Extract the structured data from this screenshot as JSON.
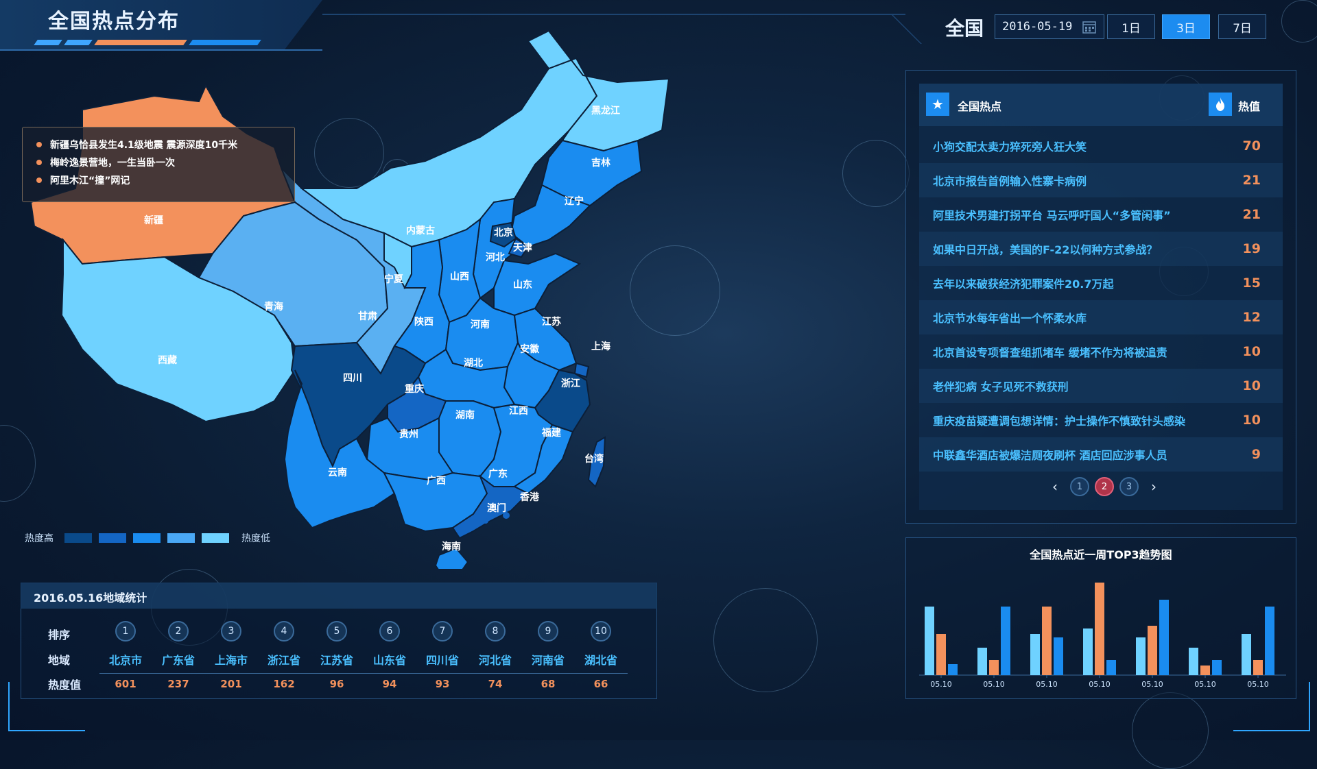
{
  "header": {
    "title": "全国热点分布",
    "region": "全国",
    "date": "2016-05-19",
    "ranges": [
      {
        "label": "1日",
        "active": false
      },
      {
        "label": "3日",
        "active": true
      },
      {
        "label": "7日",
        "active": false
      }
    ]
  },
  "news": [
    "新疆乌恰县发生4.1级地震 震源深度10千米",
    "梅岭逸景营地，一生当卧一次",
    "阿里木江“撞”网记"
  ],
  "map": {
    "provinces": {
      "xinjiang": "新疆",
      "xizang": "西藏",
      "qinghai": "青海",
      "gansu": "甘肃",
      "neimenggu": "内蒙古",
      "heilongjiang": "黑龙江",
      "jilin": "吉林",
      "liaoning": "辽宁",
      "beijing": "北京",
      "tianjin": "天津",
      "hebei": "河北",
      "shanxi": "山西",
      "shandong": "山东",
      "ningxia": "宁夏",
      "shaanxi": "陕西",
      "henan": "河南",
      "jiangsu": "江苏",
      "anhui": "安徽",
      "shanghai": "上海",
      "zhejiang": "浙江",
      "hubei": "湖北",
      "sichuan": "四川",
      "chongqing": "重庆",
      "hunan": "湖南",
      "jiangxi": "江西",
      "guizhou": "贵州",
      "fujian": "福建",
      "yunnan": "云南",
      "guangxi": "广西",
      "guangdong": "广东",
      "taiwan": "台湾",
      "xianggang": "香港",
      "aomen": "澳门",
      "hainan": "海南"
    },
    "colors": {
      "xinjiang": "#f3915c",
      "lightest": "#6fd2ff",
      "light": "#5ab0f2",
      "mid": "#2e96ec",
      "blue": "#1a7fe0",
      "dark": "#0a4a8a"
    }
  },
  "legend": {
    "high_label": "热度高",
    "low_label": "热度低",
    "colors": [
      "#0a4a8a",
      "#1466c4",
      "#1a8cf0",
      "#4aa8f5",
      "#6fd2ff"
    ]
  },
  "hot": {
    "title": "全国热点",
    "value_header": "热值",
    "items": [
      {
        "text": "小狗交配太卖力猝死旁人狂大笑",
        "value": "70"
      },
      {
        "text": "北京市报告首例输入性寨卡病例",
        "value": "21"
      },
      {
        "text": "阿里技术男建打拐平台 马云呼吁国人“多管闲事”",
        "value": "21"
      },
      {
        "text": "如果中日开战，美国的F-22以何种方式参战？",
        "value": "19"
      },
      {
        "text": "去年以来破获经济犯罪案件20.7万起",
        "value": "15"
      },
      {
        "text": "北京节水每年省出一个怀柔水库",
        "value": "12"
      },
      {
        "text": "北京首设专项督查组抓堵车 缓堵不作为将被追责",
        "value": "10"
      },
      {
        "text": "老伴犯病 女子见死不救获刑",
        "value": "10"
      },
      {
        "text": "重庆疫苗疑遭调包想详情：护士操作不慎致针头感染",
        "value": "10"
      },
      {
        "text": "中联鑫华酒店被爆洁厕夜刷杯 酒店回应涉事人员",
        "value": "9"
      }
    ],
    "pages": [
      "1",
      "2",
      "3"
    ],
    "active_page": "2"
  },
  "chart_data": {
    "type": "bar",
    "title": "全国热点近一周TOP3趋势图",
    "categories": [
      "05.10",
      "05.10",
      "05.10",
      "05.10",
      "05.10",
      "05.10",
      "05.10"
    ],
    "series": [
      {
        "values": [
          100,
          40,
          60,
          68,
          55,
          40,
          60
        ],
        "color": "#6fd2ff"
      },
      {
        "values": [
          60,
          22,
          100,
          135,
          72,
          14,
          22
        ],
        "color": "#f3915c"
      },
      {
        "values": [
          16,
          100,
          55,
          22,
          110,
          22,
          100
        ],
        "color": "#1a8cf0"
      }
    ],
    "ylim": [
      0,
      140
    ]
  },
  "stats": {
    "title": "2016.05.16地域统计",
    "row_labels": [
      "排序",
      "地域",
      "热度值"
    ],
    "ranks": [
      "1",
      "2",
      "3",
      "4",
      "5",
      "6",
      "7",
      "8",
      "9",
      "10"
    ],
    "regions": [
      "北京市",
      "广东省",
      "上海市",
      "浙江省",
      "江苏省",
      "山东省",
      "四川省",
      "河北省",
      "河南省",
      "湖北省"
    ],
    "values": [
      "601",
      "237",
      "201",
      "162",
      "96",
      "94",
      "93",
      "74",
      "68",
      "66"
    ]
  }
}
